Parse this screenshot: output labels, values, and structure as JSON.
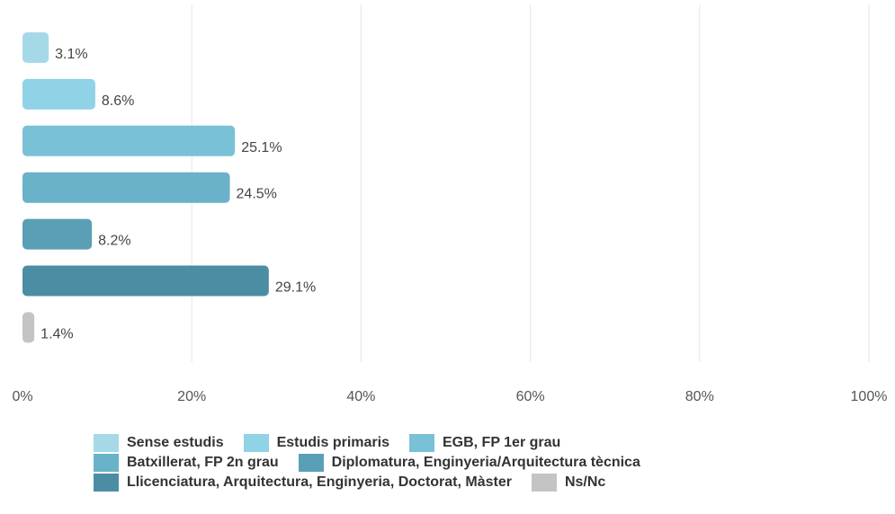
{
  "chart_data": {
    "type": "bar",
    "orientation": "horizontal",
    "categories": [
      "Sense estudis",
      "Estudis primaris",
      "EGB, FP 1er grau",
      "Batxillerat, FP 2n grau",
      "Diplomatura, Enginyeria/Arquitectura tècnica",
      "Llicenciatura, Arquitectura, Enginyeria, Doctorat, Màster",
      "Ns/Nc"
    ],
    "values": [
      3.1,
      8.6,
      25.1,
      24.5,
      8.2,
      29.1,
      1.4
    ],
    "value_labels": [
      "3.1%",
      "8.6%",
      "25.1%",
      "24.5%",
      "8.2%",
      "29.1%",
      "1.4%"
    ],
    "colors": [
      "#a6d9e8",
      "#90d2e6",
      "#79c1d6",
      "#69b2c9",
      "#5a9fb5",
      "#4b8ea3",
      "#c4c4c4"
    ],
    "xlim": [
      0,
      100
    ],
    "x_ticks": [
      "0%",
      "20%",
      "40%",
      "60%",
      "80%",
      "100%"
    ],
    "grid": true,
    "legend_position": "bottom"
  },
  "legend": {
    "rows": [
      [
        {
          "label": "Sense estudis",
          "color": "#a6d9e8"
        },
        {
          "label": "Estudis primaris",
          "color": "#90d2e6"
        },
        {
          "label": "EGB, FP 1er grau",
          "color": "#79c1d6"
        }
      ],
      [
        {
          "label": "Batxillerat, FP 2n grau",
          "color": "#69b2c9"
        },
        {
          "label": "Diplomatura, Enginyeria/Arquitectura tècnica",
          "color": "#5a9fb5"
        }
      ],
      [
        {
          "label": "Llicenciatura, Arquitectura, Enginyeria, Doctorat, Màster",
          "color": "#4b8ea3"
        },
        {
          "label": "Ns/Nc",
          "color": "#c4c4c4"
        }
      ]
    ]
  }
}
